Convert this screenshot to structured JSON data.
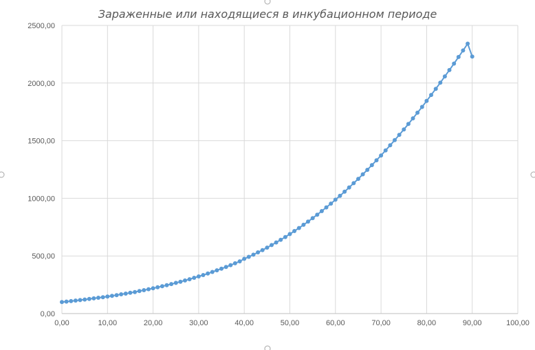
{
  "chart_data": {
    "type": "scatter",
    "title": "Зараженные или находящиеся в инкубационном периоде",
    "xlabel": "",
    "ylabel": "",
    "xlim": [
      0,
      100
    ],
    "ylim": [
      0,
      2500
    ],
    "x_ticks": [
      "0,00",
      "10,00",
      "20,00",
      "30,00",
      "40,00",
      "50,00",
      "60,00",
      "70,00",
      "80,00",
      "90,00",
      "100,00"
    ],
    "y_ticks": [
      "0,00",
      "500,00",
      "1000,00",
      "1500,00",
      "2000,00",
      "2500,00"
    ],
    "grid": true,
    "legend": "none",
    "series": [
      {
        "color": "#5b9bd5",
        "marker": "circle",
        "line": true,
        "points": [
          [
            0,
            100
          ],
          [
            1,
            104
          ],
          [
            2,
            108
          ],
          [
            3,
            113
          ],
          [
            4,
            117
          ],
          [
            5,
            122
          ],
          [
            6,
            127
          ],
          [
            7,
            132
          ],
          [
            8,
            137
          ],
          [
            9,
            142
          ],
          [
            10,
            148
          ],
          [
            11,
            154
          ],
          [
            12,
            160
          ],
          [
            13,
            167
          ],
          [
            14,
            173
          ],
          [
            15,
            180
          ],
          [
            16,
            187
          ],
          [
            17,
            195
          ],
          [
            18,
            203
          ],
          [
            19,
            211
          ],
          [
            20,
            219
          ],
          [
            21,
            228
          ],
          [
            22,
            237
          ],
          [
            23,
            246
          ],
          [
            24,
            256
          ],
          [
            25,
            266
          ],
          [
            26,
            276
          ],
          [
            27,
            287
          ],
          [
            28,
            298
          ],
          [
            29,
            310
          ],
          [
            30,
            322
          ],
          [
            31,
            334
          ],
          [
            32,
            347
          ],
          [
            33,
            361
          ],
          [
            34,
            375
          ],
          [
            35,
            389
          ],
          [
            36,
            404
          ],
          [
            37,
            420
          ],
          [
            38,
            436
          ],
          [
            39,
            453
          ],
          [
            40,
            475
          ],
          [
            41,
            492
          ],
          [
            42,
            511
          ],
          [
            43,
            531
          ],
          [
            44,
            551
          ],
          [
            45,
            572
          ],
          [
            46,
            594
          ],
          [
            47,
            617
          ],
          [
            48,
            640
          ],
          [
            49,
            664
          ],
          [
            50,
            690
          ],
          [
            51,
            716
          ],
          [
            52,
            742
          ],
          [
            53,
            770
          ],
          [
            54,
            798
          ],
          [
            55,
            828
          ],
          [
            56,
            858
          ],
          [
            57,
            889
          ],
          [
            58,
            921
          ],
          [
            59,
            954
          ],
          [
            60,
            988
          ],
          [
            61,
            1022
          ],
          [
            62,
            1057
          ],
          [
            63,
            1094
          ],
          [
            64,
            1131
          ],
          [
            65,
            1169
          ],
          [
            66,
            1208
          ],
          [
            67,
            1247
          ],
          [
            68,
            1288
          ],
          [
            69,
            1330
          ],
          [
            70,
            1372
          ],
          [
            71,
            1416
          ],
          [
            72,
            1460
          ],
          [
            73,
            1505
          ],
          [
            74,
            1551
          ],
          [
            75,
            1598
          ],
          [
            76,
            1645
          ],
          [
            77,
            1694
          ],
          [
            78,
            1743
          ],
          [
            79,
            1793
          ],
          [
            80,
            1845
          ],
          [
            81,
            1897
          ],
          [
            82,
            1950
          ],
          [
            83,
            2003
          ],
          [
            84,
            2058
          ],
          [
            85,
            2113
          ],
          [
            86,
            2169
          ],
          [
            87,
            2226
          ],
          [
            88,
            2283
          ],
          [
            89,
            2342
          ],
          [
            90,
            2230
          ]
        ]
      }
    ]
  }
}
